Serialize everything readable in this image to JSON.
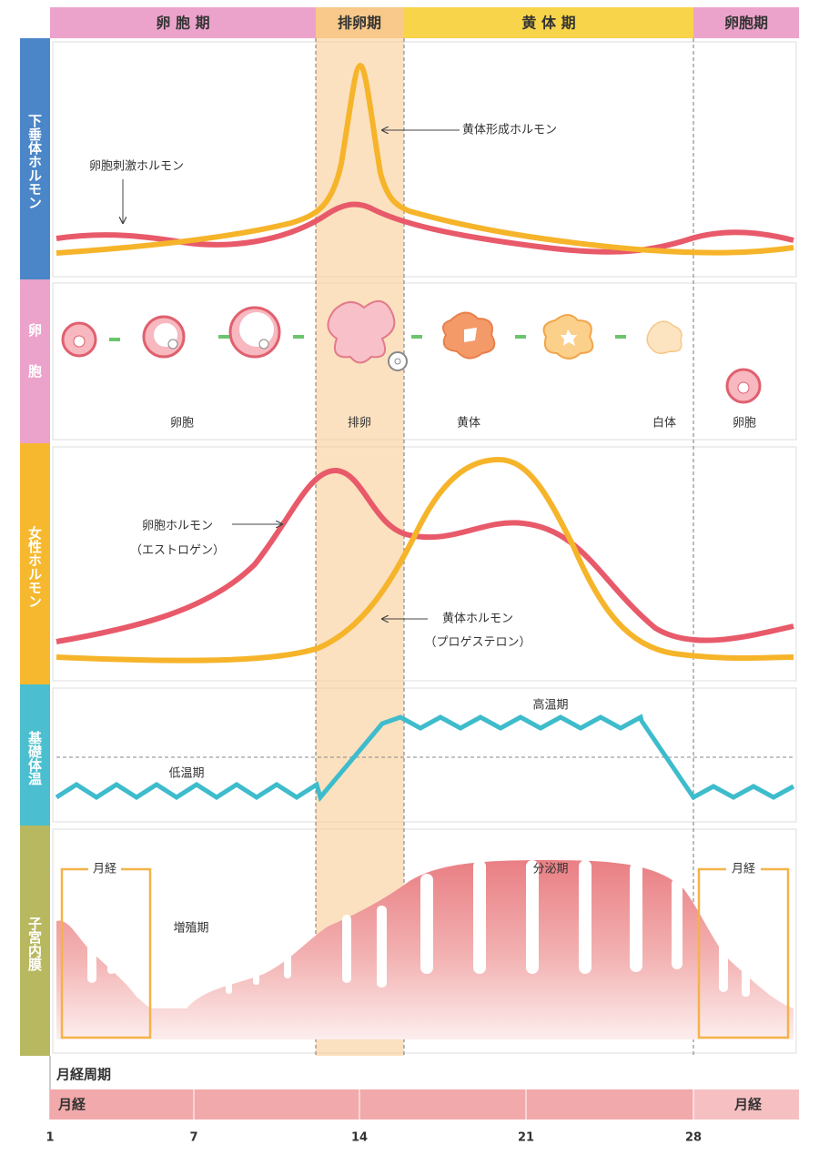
{
  "phases": [
    "卵 胞 期",
    "排卵期",
    "黄 体 期",
    "卵胞期"
  ],
  "rows": [
    "下垂体ホルモン",
    "卵胞",
    "女性ホルモン",
    "基礎体温",
    "子宮内膜"
  ],
  "pituitary": {
    "fsh": "卵胞刺激ホルモン",
    "lh": "黄体形成ホルモン"
  },
  "follicle": {
    "labels": [
      "卵胞",
      "排卵",
      "黄体",
      "白体",
      "卵胞"
    ]
  },
  "ovarian": {
    "estrogen": "卵胞ホルモン",
    "estrogen_alt": "（エストロゲン）",
    "progesterone": "黄体ホルモン",
    "progesterone_alt": "（プロゲステロン）"
  },
  "temperature": {
    "low": "低温期",
    "high": "高温期"
  },
  "endometrium": {
    "menses_left": "月経",
    "proliferative": "増殖期",
    "secretory": "分泌期",
    "menses_right": "月経"
  },
  "cycle": {
    "title": "月経周期",
    "menses_left": "月経",
    "menses_right": "月経",
    "days": [
      1,
      7,
      14,
      21,
      28
    ]
  }
}
